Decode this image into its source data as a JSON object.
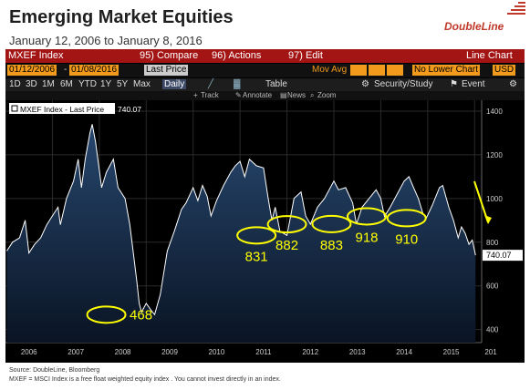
{
  "header": {
    "title": "Emerging Market Equities",
    "subtitle": "January 12, 2006  to January 8, 2016",
    "brand": "DoubleLine"
  },
  "toolbar": {
    "ticker": "MXEF Index",
    "compare": "95) Compare",
    "actions": "96) Actions",
    "edit": "97) Edit",
    "chart_type": "Line Chart",
    "start_date": "01/12/2006",
    "end_date": "01/08/2016",
    "field": "Last Price",
    "mov_avg": "Mov Avg",
    "lower_chart": "No Lower Chart",
    "currency": "USD",
    "periods": [
      "1D",
      "3D",
      "1M",
      "6M",
      "YTD",
      "1Y",
      "5Y",
      "Max"
    ],
    "frequency": "Daily",
    "table": "Table",
    "security_study": "Security/Study",
    "event": "Event",
    "track": "Track",
    "annotate": "Annotate",
    "news": "News",
    "zoom": "Zoom"
  },
  "footer": {
    "source": "Source: DoubleLine, Bloomberg",
    "note": "MXEF = MSCI Index is a free float weighted equity index . You cannot invest directly in  an  index."
  },
  "chart_data": {
    "type": "area",
    "legend": "MXEF Index - Last Price",
    "legend_value": "740.07",
    "last_value": 740.07,
    "ylim": [
      340,
      1450
    ],
    "yticks": [
      400,
      600,
      800,
      1000,
      1200,
      1400
    ],
    "xlim": [
      2006.0,
      2016.15
    ],
    "xtick_labels": [
      "2006",
      "2007",
      "2008",
      "2009",
      "2010",
      "2011",
      "2012",
      "2013",
      "2014",
      "2015",
      "201"
    ],
    "x": [
      2006.03,
      2006.15,
      2006.3,
      2006.42,
      2006.5,
      2006.62,
      2006.75,
      2006.88,
      2007.0,
      2007.12,
      2007.17,
      2007.3,
      2007.45,
      2007.55,
      2007.62,
      2007.7,
      2007.8,
      2007.85,
      2007.92,
      2008.0,
      2008.05,
      2008.15,
      2008.3,
      2008.4,
      2008.55,
      2008.65,
      2008.72,
      2008.8,
      2008.85,
      2008.9,
      2008.95,
      2009.0,
      2009.1,
      2009.18,
      2009.3,
      2009.45,
      2009.6,
      2009.75,
      2009.85,
      2010.0,
      2010.1,
      2010.2,
      2010.3,
      2010.38,
      2010.5,
      2010.65,
      2010.8,
      2010.9,
      2011.0,
      2011.1,
      2011.2,
      2011.35,
      2011.5,
      2011.6,
      2011.68,
      2011.75,
      2011.85,
      2012.0,
      2012.15,
      2012.3,
      2012.4,
      2012.5,
      2012.65,
      2012.8,
      2013.0,
      2013.1,
      2013.25,
      2013.4,
      2013.48,
      2013.6,
      2013.75,
      2013.9,
      2014.0,
      2014.08,
      2014.2,
      2014.35,
      2014.5,
      2014.6,
      2014.7,
      2014.8,
      2014.9,
      2014.97,
      2015.1,
      2015.25,
      2015.32,
      2015.45,
      2015.55,
      2015.65,
      2015.72,
      2015.8,
      2015.88,
      2015.95,
      2016.02
    ],
    "y": [
      760,
      800,
      820,
      900,
      750,
      790,
      820,
      880,
      920,
      960,
      880,
      1000,
      1080,
      1180,
      1050,
      1180,
      1300,
      1340,
      1260,
      1130,
      1050,
      1120,
      1180,
      1050,
      1000,
      880,
      760,
      620,
      520,
      480,
      500,
      520,
      490,
      468,
      560,
      760,
      850,
      950,
      980,
      1050,
      990,
      1060,
      1010,
      920,
      990,
      1060,
      1120,
      1150,
      1170,
      1100,
      1180,
      1150,
      1140,
      1000,
      900,
      960,
      850,
      831,
      1000,
      1030,
      920,
      882,
      960,
      1000,
      1080,
      1040,
      1050,
      980,
      883,
      960,
      1000,
      1040,
      1000,
      918,
      960,
      1020,
      1080,
      1100,
      1050,
      1000,
      930,
      910,
      970,
      1050,
      1060,
      960,
      900,
      820,
      870,
      840,
      790,
      810,
      740.07
    ],
    "annotations": [
      {
        "label": "468",
        "x": 2008.15,
        "y": 468
      },
      {
        "label": "831",
        "x": 2011.35,
        "y": 831
      },
      {
        "label": "882",
        "x": 2012.0,
        "y": 882
      },
      {
        "label": "883",
        "x": 2012.95,
        "y": 883
      },
      {
        "label": "918",
        "x": 2013.7,
        "y": 918
      },
      {
        "label": "910",
        "x": 2014.55,
        "y": 910
      }
    ],
    "colors": {
      "line": "#ffffff",
      "fill_top": "#27476e",
      "fill_bottom": "#0a1424",
      "grid": "#2a2a2a",
      "highlight": "#ffff00",
      "bar": "#a31414",
      "accent": "#f29a1b"
    }
  }
}
